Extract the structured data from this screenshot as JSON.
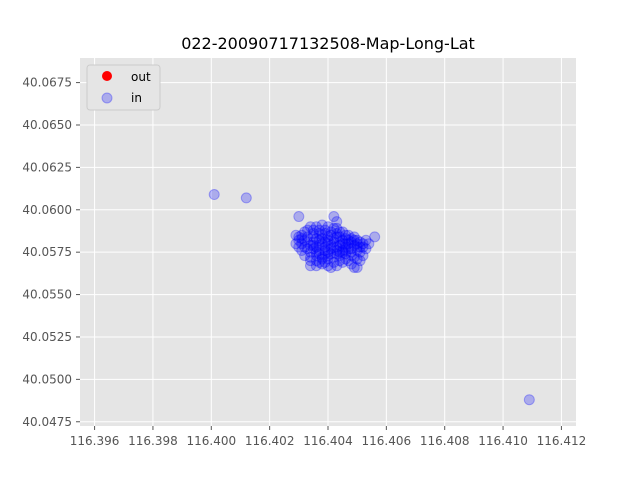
{
  "chart_data": {
    "type": "scatter",
    "title": "022-20090717132508-Map-Long-Lat",
    "xlabel": "",
    "ylabel": "",
    "xlim": [
      116.3955,
      116.4125
    ],
    "ylim": [
      40.04725,
      40.06895
    ],
    "xticks": [
      116.396,
      116.398,
      116.4,
      116.402,
      116.404,
      116.406,
      116.408,
      116.41,
      116.412
    ],
    "xtick_labels": [
      "116.396",
      "116.398",
      "116.400",
      "116.402",
      "116.404",
      "116.406",
      "116.408",
      "116.410",
      "116.412"
    ],
    "yticks": [
      40.0475,
      40.05,
      40.0525,
      40.055,
      40.0575,
      40.06,
      40.0625,
      40.065,
      40.0675
    ],
    "ytick_labels": [
      "40.0475",
      "40.0500",
      "40.0525",
      "40.0550",
      "40.0575",
      "40.0600",
      "40.0625",
      "40.0650",
      "40.0675"
    ],
    "grid": true,
    "legend_position": "top-left",
    "series": [
      {
        "name": "out",
        "color": "#ff0000",
        "points": []
      },
      {
        "name": "in",
        "color": "#0000ff",
        "points": [
          [
            116.4001,
            40.0609
          ],
          [
            116.4012,
            40.0607
          ],
          [
            116.403,
            40.0596
          ],
          [
            116.4042,
            40.0596
          ],
          [
            116.4043,
            40.0593
          ],
          [
            116.4056,
            40.0584
          ],
          [
            116.4109,
            40.0488
          ],
          [
            116.4029,
            40.0585
          ],
          [
            116.403,
            40.0584
          ],
          [
            116.4031,
            40.0585
          ],
          [
            116.4029,
            40.058
          ],
          [
            116.403,
            40.0578
          ],
          [
            116.4031,
            40.0576
          ],
          [
            116.4032,
            40.0573
          ],
          [
            116.4034,
            40.057
          ],
          [
            116.4034,
            40.0567
          ],
          [
            116.4036,
            40.0567
          ],
          [
            116.4038,
            40.0568
          ],
          [
            116.404,
            40.0567
          ],
          [
            116.4041,
            40.0566
          ],
          [
            116.4043,
            40.0567
          ],
          [
            116.4044,
            40.057
          ],
          [
            116.4046,
            40.0571
          ],
          [
            116.4048,
            40.0568
          ],
          [
            116.4049,
            40.0566
          ],
          [
            116.405,
            40.0566
          ],
          [
            116.4051,
            40.057
          ],
          [
            116.4052,
            40.0573
          ],
          [
            116.4053,
            40.0577
          ],
          [
            116.4054,
            40.058
          ],
          [
            116.4053,
            40.0582
          ],
          [
            116.405,
            40.0582
          ],
          [
            116.4048,
            40.0583
          ],
          [
            116.4046,
            40.0585
          ],
          [
            116.4044,
            40.0587
          ],
          [
            116.4042,
            40.0589
          ],
          [
            116.404,
            40.059
          ],
          [
            116.4038,
            40.0591
          ],
          [
            116.4036,
            40.059
          ],
          [
            116.4034,
            40.059
          ],
          [
            116.4033,
            40.0588
          ],
          [
            116.4032,
            40.0587
          ],
          [
            116.4035,
            40.0586
          ],
          [
            116.4037,
            40.0586
          ],
          [
            116.4039,
            40.0586
          ],
          [
            116.4041,
            40.0585
          ],
          [
            116.4043,
            40.0584
          ],
          [
            116.4045,
            40.0582
          ],
          [
            116.4047,
            40.058
          ],
          [
            116.4049,
            40.0579
          ],
          [
            116.4051,
            40.0578
          ],
          [
            116.405,
            40.0576
          ],
          [
            116.4048,
            40.0575
          ],
          [
            116.4046,
            40.0574
          ],
          [
            116.4044,
            40.0573
          ],
          [
            116.4042,
            40.0572
          ],
          [
            116.404,
            40.0571
          ],
          [
            116.4038,
            40.0572
          ],
          [
            116.4036,
            40.0573
          ],
          [
            116.4034,
            40.0575
          ],
          [
            116.4033,
            40.0577
          ],
          [
            116.4034,
            40.0579
          ],
          [
            116.4035,
            40.0581
          ],
          [
            116.4036,
            40.0583
          ],
          [
            116.4038,
            40.0583
          ],
          [
            116.404,
            40.0582
          ],
          [
            116.4042,
            40.0581
          ],
          [
            116.4044,
            40.0579
          ],
          [
            116.4046,
            40.0578
          ],
          [
            116.4045,
            40.0576
          ],
          [
            116.4043,
            40.0576
          ],
          [
            116.4041,
            40.0577
          ],
          [
            116.4039,
            40.0578
          ],
          [
            116.4037,
            40.0579
          ],
          [
            116.4038,
            40.058
          ],
          [
            116.404,
            40.058
          ],
          [
            116.4042,
            40.0578
          ],
          [
            116.4039,
            40.0576
          ],
          [
            116.4037,
            40.0576
          ],
          [
            116.4036,
            40.0578
          ],
          [
            116.4035,
            40.0584
          ],
          [
            116.4032,
            40.0582
          ],
          [
            116.4031,
            40.058
          ],
          [
            116.4033,
            40.0581
          ],
          [
            116.4037,
            40.0588
          ],
          [
            116.4039,
            40.0588
          ],
          [
            116.4041,
            40.0587
          ],
          [
            116.4043,
            40.0586
          ],
          [
            116.4044,
            40.0584
          ],
          [
            116.4046,
            40.0583
          ],
          [
            116.4048,
            40.0581
          ],
          [
            116.4047,
            40.0577
          ],
          [
            116.4045,
            40.0575
          ],
          [
            116.4043,
            40.0574
          ],
          [
            116.4041,
            40.0574
          ],
          [
            116.4039,
            40.0574
          ],
          [
            116.4036,
            40.0575
          ],
          [
            116.4034,
            40.0572
          ],
          [
            116.4037,
            40.0569
          ],
          [
            116.4039,
            40.0569
          ],
          [
            116.4042,
            40.0569
          ],
          [
            116.4045,
            40.0569
          ],
          [
            116.4047,
            40.057
          ],
          [
            116.4049,
            40.0572
          ],
          [
            116.4051,
            40.0575
          ],
          [
            116.4052,
            40.0578
          ],
          [
            116.405,
            40.058
          ],
          [
            116.4049,
            40.0582
          ],
          [
            116.4043,
            40.0589
          ],
          [
            116.4045,
            40.0587
          ],
          [
            116.4047,
            40.0585
          ],
          [
            116.4032,
            40.0578
          ],
          [
            116.4033,
            40.0584
          ],
          [
            116.4035,
            40.0588
          ],
          [
            116.4038,
            40.0585
          ],
          [
            116.404,
            40.0584
          ],
          [
            116.4042,
            40.0583
          ],
          [
            116.4044,
            40.0581
          ],
          [
            116.4046,
            40.058
          ],
          [
            116.4041,
            40.0579
          ],
          [
            116.4039,
            40.0581
          ],
          [
            116.4037,
            40.0582
          ],
          [
            116.4035,
            40.0579
          ],
          [
            116.4035,
            40.0577
          ],
          [
            116.4037,
            40.0574
          ],
          [
            116.404,
            40.0575
          ],
          [
            116.4043,
            40.0578
          ],
          [
            116.4045,
            40.058
          ],
          [
            116.4047,
            40.0582
          ],
          [
            116.4049,
            40.0584
          ],
          [
            116.4051,
            40.0581
          ],
          [
            116.4052,
            40.058
          ],
          [
            116.405,
            40.0578
          ],
          [
            116.4048,
            40.0577
          ],
          [
            116.403,
            40.0582
          ],
          [
            116.4031,
            40.0583
          ],
          [
            116.4036,
            40.057
          ],
          [
            116.4038,
            40.0571
          ],
          [
            116.404,
            40.0573
          ],
          [
            116.4044,
            40.0575
          ],
          [
            116.4046,
            40.0576
          ],
          [
            116.4048,
            40.0573
          ],
          [
            116.405,
            40.0571
          ]
        ]
      }
    ]
  }
}
